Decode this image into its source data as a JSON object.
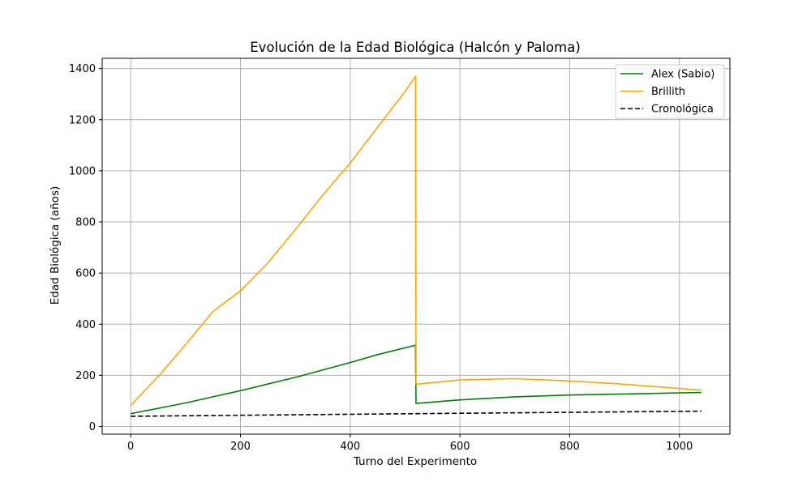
{
  "chart_data": {
    "type": "line",
    "title": "Evolución de la Edad Biológica (Halcón y Paloma)",
    "xlabel": "Turno del Experimento",
    "ylabel": "Edad Biológica (años)",
    "xlim": [
      -52,
      1092
    ],
    "ylim": [
      -30,
      1440
    ],
    "xticks": [
      0,
      200,
      400,
      600,
      800,
      1000
    ],
    "yticks": [
      0,
      200,
      400,
      600,
      800,
      1000,
      1200,
      1400
    ],
    "grid": true,
    "legend_position": "top-right",
    "series": [
      {
        "name": "Alex (Sabio)",
        "color": "#008000",
        "dash": "solid",
        "points": [
          [
            0,
            50
          ],
          [
            100,
            92
          ],
          [
            200,
            140
          ],
          [
            300,
            192
          ],
          [
            400,
            250
          ],
          [
            450,
            281
          ],
          [
            519,
            318
          ],
          [
            520,
            90
          ],
          [
            600,
            104
          ],
          [
            700,
            116
          ],
          [
            800,
            123
          ],
          [
            900,
            127
          ],
          [
            1040,
            133
          ]
        ]
      },
      {
        "name": "Brillith",
        "color": "#ffa500",
        "dash": "solid",
        "points": [
          [
            0,
            82
          ],
          [
            50,
            195
          ],
          [
            100,
            320
          ],
          [
            150,
            450
          ],
          [
            200,
            530
          ],
          [
            250,
            640
          ],
          [
            300,
            770
          ],
          [
            350,
            905
          ],
          [
            400,
            1030
          ],
          [
            450,
            1170
          ],
          [
            500,
            1310
          ],
          [
            519,
            1370
          ],
          [
            520,
            165
          ],
          [
            600,
            182
          ],
          [
            700,
            187
          ],
          [
            800,
            178
          ],
          [
            900,
            165
          ],
          [
            1040,
            142
          ]
        ]
      },
      {
        "name": "Cronológica",
        "color": "#000000",
        "dash": "dashed",
        "points": [
          [
            0,
            40
          ],
          [
            520,
            50
          ],
          [
            1040,
            60
          ]
        ]
      }
    ]
  }
}
